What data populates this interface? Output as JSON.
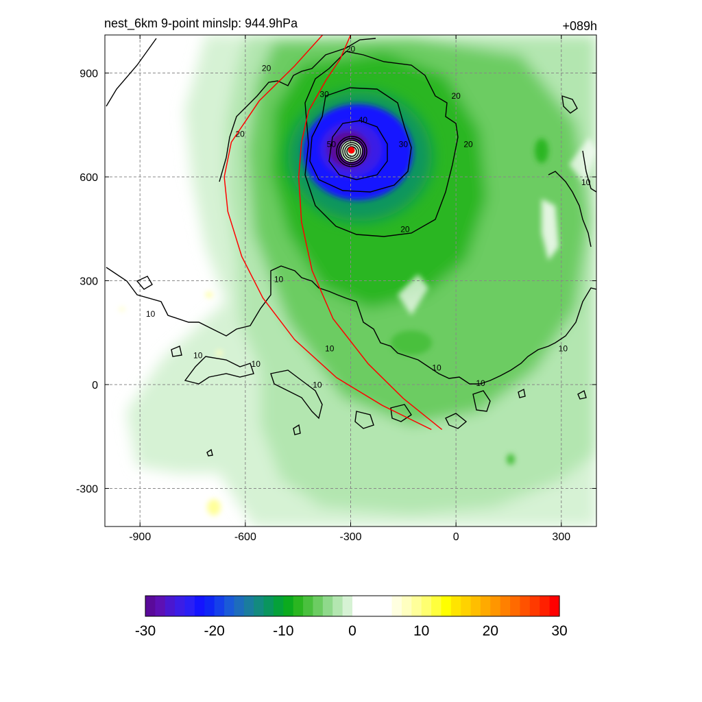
{
  "header": {
    "title": "nest_6km  9-point minslp: 944.9hPa",
    "forecast_hour": "+089h"
  },
  "chart_data": {
    "type": "heatmap",
    "xlim": [
      -1000,
      400
    ],
    "ylim": [
      -410,
      1010
    ],
    "x_ticks": [
      -900,
      -600,
      -300,
      0,
      300
    ],
    "y_ticks": [
      -300,
      0,
      300,
      600,
      900
    ],
    "x_tick_labels": [
      "-900",
      "-600",
      "-300",
      "0",
      "300"
    ],
    "y_tick_labels": [
      "-300",
      "0",
      "300",
      "600",
      "900"
    ],
    "grid": true,
    "storm_center": {
      "x": -298,
      "y": 677,
      "color": "#ff0000"
    },
    "contour_levels": [
      10,
      20,
      30,
      40,
      50
    ],
    "contour_labels": [
      {
        "text": "20",
        "x": -540,
        "y": 910
      },
      {
        "text": "20",
        "x": -615,
        "y": 720
      },
      {
        "text": "20",
        "x": -300,
        "y": 965
      },
      {
        "text": "30",
        "x": -375,
        "y": 835
      },
      {
        "text": "40",
        "x": -265,
        "y": 760
      },
      {
        "text": "50",
        "x": -355,
        "y": 690
      },
      {
        "text": "30",
        "x": -150,
        "y": 690
      },
      {
        "text": "20",
        "x": 0,
        "y": 830
      },
      {
        "text": "20",
        "x": 35,
        "y": 690
      },
      {
        "text": "20",
        "x": -145,
        "y": 445
      },
      {
        "text": "10",
        "x": 370,
        "y": 580
      },
      {
        "text": "10",
        "x": -505,
        "y": 300
      },
      {
        "text": "10",
        "x": -870,
        "y": 200
      },
      {
        "text": "10",
        "x": -735,
        "y": 80
      },
      {
        "text": "10",
        "x": -570,
        "y": 55
      },
      {
        "text": "10",
        "x": -360,
        "y": 100
      },
      {
        "text": "10",
        "x": -395,
        "y": -5
      },
      {
        "text": "10",
        "x": -55,
        "y": 45
      },
      {
        "text": "10",
        "x": 70,
        "y": 0
      },
      {
        "text": "10",
        "x": 305,
        "y": 100
      }
    ],
    "red_curves": [
      {
        "name": "",
        "points": [
          [
            -380,
            1010
          ],
          [
            -460,
            920
          ],
          [
            -560,
            820
          ],
          [
            -640,
            700
          ],
          [
            -660,
            600
          ],
          [
            -650,
            500
          ],
          [
            -610,
            370
          ],
          [
            -550,
            250
          ],
          [
            -460,
            130
          ],
          [
            -340,
            20
          ],
          [
            -210,
            -60
          ],
          [
            -130,
            -100
          ],
          [
            -70,
            -130
          ]
        ]
      },
      {
        "name": "",
        "points": [
          [
            -300,
            1010
          ],
          [
            -330,
            940
          ],
          [
            -370,
            880
          ],
          [
            -420,
            790
          ],
          [
            -440,
            700
          ],
          [
            -448,
            600
          ],
          [
            -440,
            470
          ],
          [
            -410,
            330
          ],
          [
            -350,
            190
          ],
          [
            -250,
            60
          ],
          [
            -150,
            -40
          ],
          [
            -40,
            -130
          ]
        ]
      }
    ],
    "colorbar": {
      "min": -30,
      "max": 30,
      "ticks": [
        -30,
        -20,
        -10,
        0,
        10,
        20,
        30
      ],
      "tick_labels": [
        "-30",
        "-20",
        "-10",
        "0",
        "10",
        "20",
        "30"
      ],
      "colors": [
        "#5a0a9a",
        "#5d10b4",
        "#4a17d0",
        "#3b1de6",
        "#2a1ff5",
        "#1414ff",
        "#0f26f5",
        "#1540ea",
        "#1a5ad8",
        "#1d6cbc",
        "#1a7c9e",
        "#138a7f",
        "#0a955e",
        "#05a13a",
        "#0bab1e",
        "#2ab620",
        "#4ac03e",
        "#6ccc62",
        "#8fd98b",
        "#b3e6b0",
        "#d6f2d4",
        "#ffffff",
        "#ffffff",
        "#ffffff",
        "#ffffff",
        "#ffffe0",
        "#ffffc0",
        "#ffff9a",
        "#ffff70",
        "#ffff3d",
        "#ffff00",
        "#ffe400",
        "#ffd200",
        "#ffbe00",
        "#ffaa00",
        "#ff9600",
        "#ff8000",
        "#ff6a00",
        "#ff5200",
        "#ff3a00",
        "#ff2000",
        "#ff0000"
      ]
    }
  }
}
